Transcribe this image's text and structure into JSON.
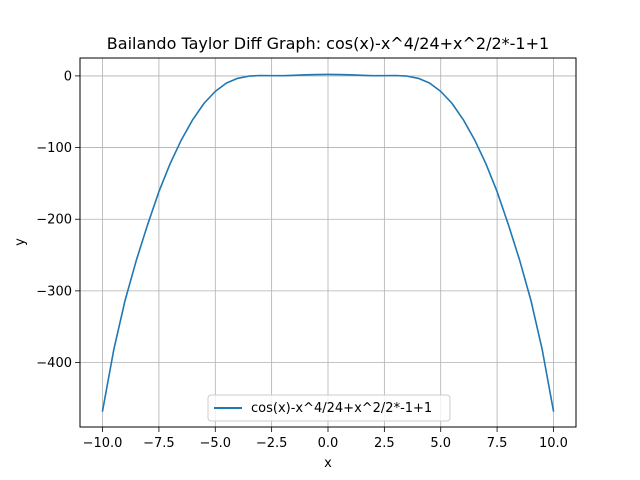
{
  "chart_data": {
    "type": "line",
    "title": "Bailando Taylor Diff Graph: cos(x)-x^4/24+x^2/2*-1+1",
    "xlabel": "x",
    "ylabel": "y",
    "xlim": [
      -11,
      11
    ],
    "ylim": [
      -490,
      25
    ],
    "xticks": [
      -10,
      -7.5,
      -5,
      -2.5,
      0,
      2.5,
      5,
      7.5,
      10
    ],
    "xtick_labels": [
      "−10.0",
      "−7.5",
      "−5.0",
      "−2.5",
      "0.0",
      "2.5",
      "5.0",
      "7.5",
      "10.0"
    ],
    "yticks": [
      -400,
      -300,
      -200,
      -100,
      0
    ],
    "ytick_labels": [
      "−400",
      "−300",
      "−200",
      "−100",
      "0"
    ],
    "grid": true,
    "legend_position": "lower-center",
    "series": [
      {
        "name": "cos(x)-x^4/24+x^2/2*-1+1",
        "color": "#1f77b4",
        "x": [
          -10,
          -9.5,
          -9,
          -8.5,
          -8,
          -7.5,
          -7,
          -6.5,
          -6,
          -5.5,
          -5,
          -4.5,
          -4,
          -3.5,
          -3,
          -2.5,
          -2,
          -1.5,
          -1,
          -0.5,
          0,
          0.5,
          1,
          1.5,
          2,
          2.5,
          3,
          3.5,
          4,
          4.5,
          5,
          5.5,
          6,
          6.5,
          7,
          7.5,
          8,
          8.5,
          9,
          9.5,
          10
        ],
        "y": [
          -467.51,
          -381.8,
          -313.25,
          -257.16,
          -207.48,
          -161.48,
          -122.28,
          -89.05,
          -61.04,
          -38.33,
          -21.59,
          -9.92,
          -3.32,
          -0.26,
          0.56,
          0.39,
          0.26,
          0.81,
          1.54,
          1.87,
          2,
          1.87,
          1.54,
          0.81,
          0.26,
          0.39,
          0.56,
          -0.26,
          -3.32,
          -9.92,
          -21.59,
          -38.33,
          -61.04,
          -89.05,
          -122.28,
          -161.48,
          -207.48,
          -257.16,
          -313.25,
          -381.8,
          -467.51
        ]
      }
    ]
  }
}
